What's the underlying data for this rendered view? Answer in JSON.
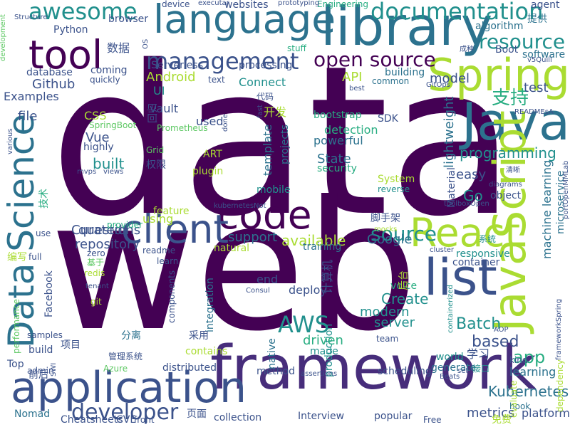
{
  "palette": {
    "dark_purple": "#440154",
    "indigo": "#472d7b",
    "blue": "#3b528b",
    "steel": "#2c728e",
    "teal": "#21908d",
    "green": "#27ad81",
    "lime": "#5dc863",
    "yellow_green": "#aadc32",
    "yellow": "#fde725"
  },
  "words": [
    {
      "t": "data",
      "c": "#440154"
    },
    {
      "t": "web",
      "c": "#440154"
    },
    {
      "t": "framework",
      "c": "#472d7b"
    },
    {
      "t": "application",
      "c": "#3b528b"
    },
    {
      "t": "library",
      "c": "#2c728e"
    },
    {
      "t": "Java",
      "c": "#2c728e"
    },
    {
      "t": "list",
      "c": "#3b528b"
    },
    {
      "t": "JavaScript",
      "c": "#aadc32"
    },
    {
      "t": "Spring",
      "c": "#aadc32"
    },
    {
      "t": "React",
      "c": "#aadc32"
    },
    {
      "t": "Data Science",
      "c": "#2c728e"
    },
    {
      "t": "code",
      "c": "#440154"
    },
    {
      "t": "client",
      "c": "#3b528b"
    },
    {
      "t": "tool",
      "c": "#440154"
    },
    {
      "t": "language",
      "c": "#2c728e"
    },
    {
      "t": "awesome",
      "c": "#21908d"
    },
    {
      "t": "documentation",
      "c": "#21908d"
    },
    {
      "t": "management",
      "c": "#3b528b"
    },
    {
      "t": "open source",
      "c": "#440154"
    },
    {
      "t": "resource",
      "c": "#21908d"
    },
    {
      "t": "source",
      "c": "#21908d"
    },
    {
      "t": "AWS",
      "c": "#21908d"
    },
    {
      "t": "developer",
      "c": "#3b528b"
    },
    {
      "t": "支持",
      "c": "#27ad81"
    },
    {
      "t": "Kubernetes",
      "c": "#2c728e"
    },
    {
      "t": "programming",
      "c": "#21908d"
    },
    {
      "t": "based",
      "c": "#3b528b"
    },
    {
      "t": "app",
      "c": "#27ad81"
    },
    {
      "t": "Batch",
      "c": "#21908d"
    },
    {
      "t": "machine learning",
      "c": "#2c728e"
    },
    {
      "t": "Create",
      "c": "#21908d"
    },
    {
      "t": "modern",
      "c": "#21908d"
    },
    {
      "t": "server",
      "c": "#21908d"
    },
    {
      "t": "repository",
      "c": "#3b528b"
    },
    {
      "t": "Curated",
      "c": "#3b528b"
    },
    {
      "t": "questions",
      "c": "#3b528b"
    },
    {
      "t": "Google",
      "c": "#2c728e"
    },
    {
      "t": "available",
      "c": "#aadc32"
    },
    {
      "t": "support",
      "c": "#2c728e"
    },
    {
      "t": "easy",
      "c": "#3b528b"
    },
    {
      "t": "Go",
      "c": "#21908d"
    },
    {
      "t": "lightweight",
      "c": "#2c728e"
    },
    {
      "t": "template",
      "c": "#2c728e"
    },
    {
      "t": "projects",
      "c": "#2c728e"
    },
    {
      "t": "detection",
      "c": "#27ad81"
    },
    {
      "t": "powerful",
      "c": "#2c728e"
    },
    {
      "t": "State",
      "c": "#2c728e"
    },
    {
      "t": "security",
      "c": "#27ad81"
    },
    {
      "t": "test",
      "c": "#3b528b"
    },
    {
      "t": "model",
      "c": "#3b528b"
    },
    {
      "t": "Github",
      "c": "#3b528b"
    },
    {
      "t": "Examples",
      "c": "#3b528b"
    },
    {
      "t": "file",
      "c": "#3b528b"
    },
    {
      "t": "Vue",
      "c": "#3b528b"
    },
    {
      "t": "highly",
      "c": "#3b528b"
    },
    {
      "t": "built",
      "c": "#21908d"
    },
    {
      "t": "Android",
      "c": "#aadc32"
    },
    {
      "t": "UI",
      "c": "#21908d"
    },
    {
      "t": "vault",
      "c": "#3b528b"
    },
    {
      "t": "used",
      "c": "#3b528b"
    },
    {
      "t": "CSS",
      "c": "#aadc32"
    },
    {
      "t": "SpringBoot",
      "c": "#5dc863"
    },
    {
      "t": "Prometheus",
      "c": "#5dc863"
    },
    {
      "t": "Grid",
      "c": "#5dc863"
    },
    {
      "t": "ART",
      "c": "#aadc32"
    },
    {
      "t": "plugin",
      "c": "#aadc32"
    },
    {
      "t": "mobile",
      "c": "#21908d"
    },
    {
      "t": "System",
      "c": "#aadc32"
    },
    {
      "t": "reverse",
      "c": "#21908d"
    },
    {
      "t": "using",
      "c": "#aadc32"
    },
    {
      "t": "feature",
      "c": "#aadc32"
    },
    {
      "t": "provider",
      "c": "#27ad81"
    },
    {
      "t": "object",
      "c": "#3b528b"
    },
    {
      "t": "Material",
      "c": "#3b528b"
    },
    {
      "t": "microservice",
      "c": "#2c728e"
    },
    {
      "t": "responsive",
      "c": "#21908d"
    },
    {
      "t": "container",
      "c": "#3b528b"
    },
    {
      "t": "natural",
      "c": "#aadc32"
    },
    {
      "t": "training",
      "c": "#2c728e"
    },
    {
      "t": "deploy",
      "c": "#3b528b"
    },
    {
      "t": "脚手架",
      "c": "#3b528b"
    },
    {
      "t": "end",
      "c": "#3b528b"
    },
    {
      "t": "voice",
      "c": "#27ad81"
    },
    {
      "t": "production",
      "c": "#21908d"
    },
    {
      "t": "native",
      "c": "#2c728e"
    },
    {
      "t": "integration",
      "c": "#2c728e"
    },
    {
      "t": "driven",
      "c": "#27ad81"
    },
    {
      "t": "made",
      "c": "#21908d"
    },
    {
      "t": "contains",
      "c": "#aadc32"
    },
    {
      "t": "distributed",
      "c": "#3b528b"
    },
    {
      "t": "method",
      "c": "#3b528b"
    },
    {
      "t": "scheduling",
      "c": "#3b528b"
    },
    {
      "t": "generate",
      "c": "#2c728e"
    },
    {
      "t": "world",
      "c": "#21908d"
    },
    {
      "t": "学习",
      "c": "#3b528b"
    },
    {
      "t": "learning",
      "c": "#2c728e"
    },
    {
      "t": "metrics",
      "c": "#3b528b"
    },
    {
      "t": "platform",
      "c": "#3b528b"
    },
    {
      "t": "Interview",
      "c": "#3b528b"
    },
    {
      "t": "popular",
      "c": "#3b528b"
    },
    {
      "t": "collection",
      "c": "#3b528b"
    },
    {
      "t": "页面",
      "c": "#3b528b"
    },
    {
      "t": "Cheatsheets",
      "c": "#3b528b"
    },
    {
      "t": "Nomad",
      "c": "#2c728e"
    },
    {
      "t": "Top",
      "c": "#3b528b"
    },
    {
      "t": "admin",
      "c": "#3b528b"
    },
    {
      "t": "build",
      "c": "#3b528b"
    },
    {
      "t": "samples",
      "c": "#3b528b"
    },
    {
      "t": "前后",
      "c": "#3b528b"
    },
    {
      "t": "Facebook",
      "c": "#3b528b"
    },
    {
      "t": "use",
      "c": "#3b528b"
    },
    {
      "t": "full",
      "c": "#3b528b"
    },
    {
      "t": "zero",
      "c": "#3b528b"
    },
    {
      "t": "readme",
      "c": "#3b528b"
    },
    {
      "t": "learn",
      "c": "#3b528b"
    },
    {
      "t": "redis",
      "c": "#aadc32"
    },
    {
      "t": "基于",
      "c": "#5dc863"
    },
    {
      "t": "git",
      "c": "#aadc32"
    },
    {
      "t": "performance",
      "c": "#5dc863"
    },
    {
      "t": "components",
      "c": "#3b528b"
    },
    {
      "t": "分离",
      "c": "#2c728e"
    },
    {
      "t": "采用",
      "c": "#3b528b"
    },
    {
      "t": "管理系统",
      "c": "#3b528b"
    },
    {
      "t": "项目",
      "c": "#3b528b"
    },
    {
      "t": "Azure",
      "c": "#5dc863"
    },
    {
      "t": "CVE",
      "c": "#3b528b"
    },
    {
      "t": "front",
      "c": "#3b528b"
    },
    {
      "t": "Free",
      "c": "#3b528b"
    },
    {
      "t": "免费",
      "c": "#aadc32"
    },
    {
      "t": "hook",
      "c": "#2c728e"
    },
    {
      "t": "dependency",
      "c": "#aadc32"
    },
    {
      "t": "kind",
      "c": "#3b528b"
    },
    {
      "t": "evaluate",
      "c": "#aadc32"
    },
    {
      "t": "接口",
      "c": "#21908d"
    },
    {
      "t": "team",
      "c": "#3b528b"
    },
    {
      "t": "building",
      "c": "#2c728e"
    },
    {
      "t": "common",
      "c": "#2c728e"
    },
    {
      "t": "Connect",
      "c": "#21908d"
    },
    {
      "t": "processing",
      "c": "#3b528b"
    },
    {
      "t": "Serverless",
      "c": "#3b528b"
    },
    {
      "t": "text",
      "c": "#3b528b"
    },
    {
      "t": "quickly",
      "c": "#3b528b"
    },
    {
      "t": "coming",
      "c": "#3b528b"
    },
    {
      "t": "database",
      "c": "#3b528b"
    },
    {
      "t": "Python",
      "c": "#3b528b"
    },
    {
      "t": "browser",
      "c": "#3b528b"
    },
    {
      "t": "websites",
      "c": "#3b528b"
    },
    {
      "t": "Engineering",
      "c": "#27ad81"
    },
    {
      "t": "algorithm",
      "c": "#2c728e"
    },
    {
      "t": "提供",
      "c": "#2c728e"
    },
    {
      "t": "Boot",
      "c": "#3b528b"
    },
    {
      "t": "software",
      "c": "#2c728e"
    },
    {
      "t": "SDK",
      "c": "#3b528b"
    },
    {
      "t": "bootstrap",
      "c": "#27ad81"
    },
    {
      "t": "开发",
      "c": "#aadc32"
    },
    {
      "t": "代码",
      "c": "#3b528b"
    },
    {
      "t": "数据",
      "c": "#3b528b"
    },
    {
      "t": "device",
      "c": "#3b528b"
    },
    {
      "t": "executar",
      "c": "#3b528b"
    },
    {
      "t": "prototyping",
      "c": "#3b528b"
    },
    {
      "t": "agent",
      "c": "#3b528b"
    },
    {
      "t": "stuff",
      "c": "#27ad81"
    },
    {
      "t": "Structure",
      "c": "#3b528b"
    },
    {
      "t": "development",
      "c": "#5dc863"
    },
    {
      "t": "技术",
      "c": "#27ad81"
    },
    {
      "t": "权限",
      "c": "#3b528b"
    },
    {
      "t": "回归",
      "c": "#3b528b"
    },
    {
      "t": "计算机",
      "c": "#3b528b"
    },
    {
      "t": "后台",
      "c": "#aadc32"
    },
    {
      "t": "系统",
      "c": "#21908d"
    },
    {
      "t": "成种",
      "c": "#3b528b"
    },
    {
      "t": "v5Quill",
      "c": "#3b528b"
    },
    {
      "t": "best",
      "c": "#3b528b"
    },
    {
      "t": "GitOps",
      "c": "#3b528b"
    },
    {
      "t": "READMEsA",
      "c": "#3b528b"
    },
    {
      "t": "fast",
      "c": "#3b528b"
    },
    {
      "t": "done",
      "c": "#3b528b"
    },
    {
      "t": "views",
      "c": "#3b528b"
    },
    {
      "t": "mvps",
      "c": "#3b528b"
    },
    {
      "t": "kubernetesNot",
      "c": "#3b528b"
    },
    {
      "t": "diagrams",
      "c": "#3b528b"
    },
    {
      "t": "清晰",
      "c": "#3b528b"
    },
    {
      "t": "toolboxOpen",
      "c": "#3b528b"
    },
    {
      "t": "portOpenMMLab",
      "c": "#3b528b"
    },
    {
      "t": "cluster",
      "c": "#3b528b"
    },
    {
      "t": "mocks",
      "c": "#aadc32"
    },
    {
      "t": "Consul",
      "c": "#3b528b"
    },
    {
      "t": "tenant",
      "c": "#3b528b"
    },
    {
      "t": "SWI",
      "c": "#3b528b"
    },
    {
      "t": "containerized",
      "c": "#21908d"
    },
    {
      "t": "AOP",
      "c": "#3b528b"
    },
    {
      "t": "frameworkSpring",
      "c": "#3b528b"
    },
    {
      "t": "Beats",
      "c": "#3b528b"
    },
    {
      "t": "set",
      "c": "#3b528b"
    },
    {
      "t": "assertions",
      "c": "#3b528b"
    },
    {
      "t": "various",
      "c": "#3b528b"
    },
    {
      "t": "编写",
      "c": "#aadc32"
    },
    {
      "t": "OS",
      "c": "#3b528b"
    },
    {
      "t": "API",
      "c": "#aadc32"
    }
  ]
}
